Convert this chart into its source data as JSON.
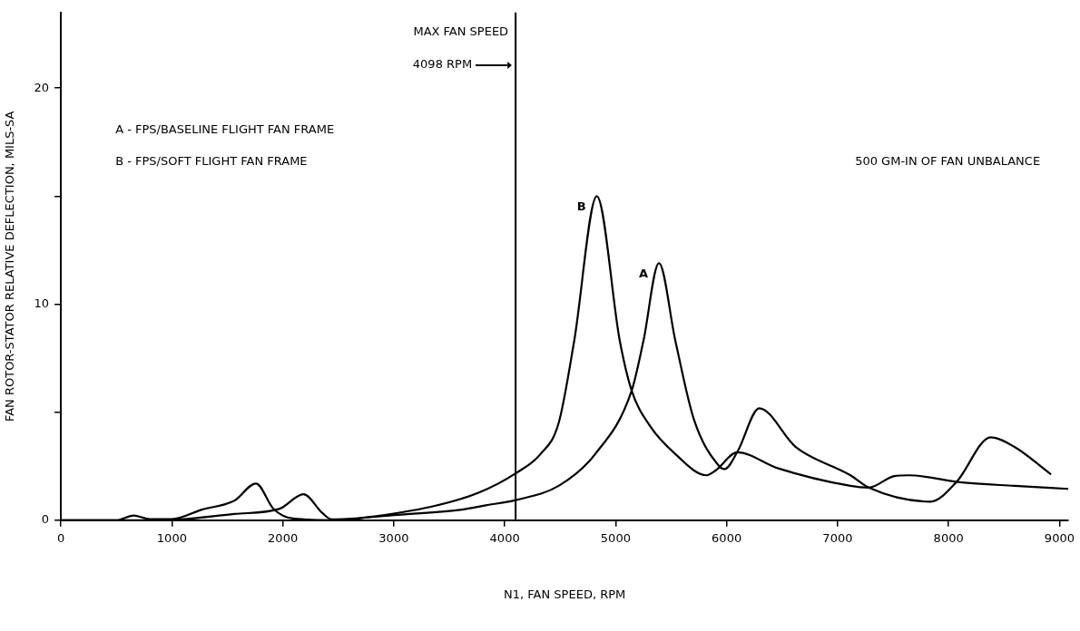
{
  "chart_data": {
    "type": "line",
    "xlabel": "N1, FAN SPEED, RPM",
    "ylabel": "FAN ROTOR-STATOR RELATIVE DEFLECTION, MILS-SA",
    "xlim": [
      0,
      9080
    ],
    "ylim": [
      0,
      23.5
    ],
    "xticks": [
      0,
      1000,
      2000,
      3000,
      4000,
      5000,
      6000,
      7000,
      8000,
      9000
    ],
    "yticks": [
      0,
      {
        "value": 5,
        "label": null
      },
      10,
      {
        "value": 15,
        "label": null
      },
      20
    ],
    "grid": false,
    "legend": false,
    "marker": "none",
    "line_style": "solid",
    "series": [
      {
        "name": "A",
        "color": "#000000",
        "x": [
          0,
          500,
          1000,
          1561,
          1972,
          2186,
          2356,
          2440,
          2700,
          3032,
          3615,
          3829,
          4108,
          4486,
          4815,
          5144,
          5250,
          5390,
          5538,
          5703,
          5933,
          5982,
          6100,
          6294,
          6623,
          7116,
          7280,
          7839,
          8070,
          8381,
          8595,
          8924
        ],
        "values": [
          0,
          0,
          0.02,
          0.29,
          0.53,
          1.2,
          0.33,
          0.04,
          0.1,
          0.25,
          0.49,
          0.69,
          0.94,
          1.59,
          3.06,
          6.0,
          8.3,
          11.9,
          8.3,
          4.7,
          2.5,
          2.37,
          3.2,
          5.18,
          3.39,
          2.08,
          1.51,
          0.86,
          1.76,
          3.84,
          3.39,
          2.12
        ]
      },
      {
        "name": "B",
        "color": "#000000",
        "x": [
          0,
          500,
          654,
          800,
          1000,
          1270,
          1561,
          1758,
          1915,
          2092,
          2500,
          2736,
          3325,
          3763,
          4108,
          4322,
          4486,
          4626,
          4830,
          5037,
          5144,
          5308,
          5538,
          5818,
          5900,
          6097,
          6459,
          7116,
          7280,
          7510,
          7642,
          8102,
          8595,
          9080
        ],
        "values": [
          0,
          0,
          0.22,
          0.05,
          0.05,
          0.49,
          0.9,
          1.7,
          0.53,
          0.08,
          0,
          0.12,
          0.61,
          1.27,
          2.2,
          3.06,
          4.5,
          8.3,
          15,
          8.3,
          6.0,
          4.37,
          3.06,
          2.08,
          2.3,
          3.14,
          2.41,
          1.59,
          1.51,
          2.04,
          2.08,
          1.76,
          1.59,
          1.45
        ]
      }
    ],
    "ref_lines": [
      {
        "axis": "x",
        "value": 4098,
        "label": "MAX FAN SPEED",
        "color": "#000000"
      }
    ],
    "annotations": [
      "A - FPS/BASELINE FLIGHT FAN FRAME",
      "B - FPS/SOFT FLIGHT FAN FRAME",
      "500 GM-IN OF FAN UNBALANCE",
      "4098 RPM"
    ]
  }
}
